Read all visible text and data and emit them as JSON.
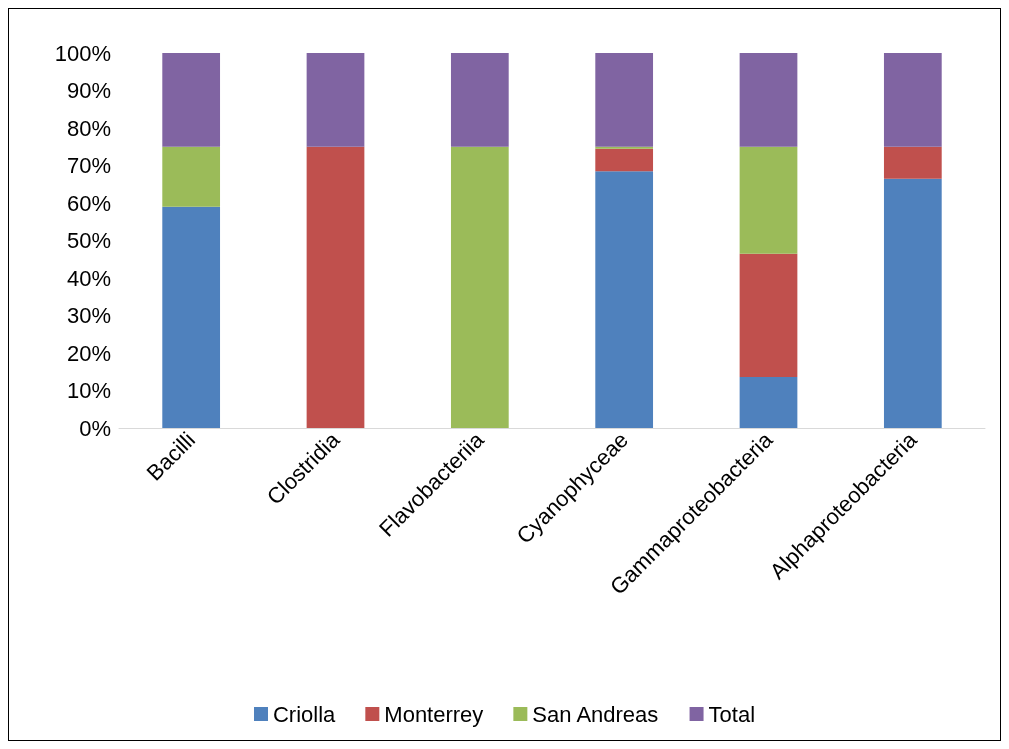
{
  "chart_data": {
    "type": "bar",
    "stacked": true,
    "categories": [
      "Bacilli",
      "Clostridia",
      "Flavobacteriia",
      "Cyanophyceae",
      "Gammaproteobacteria",
      "Alphaproteobacteria"
    ],
    "series": [
      {
        "name": "Criolla",
        "color": "#4f81bd",
        "values": [
          59,
          0,
          0,
          68.5,
          13.6,
          66.5
        ]
      },
      {
        "name": "Monterrey",
        "color": "#c0504d",
        "values": [
          0,
          75,
          0,
          6,
          32.9,
          8.5
        ]
      },
      {
        "name": "San Andreas",
        "color": "#9bbb59",
        "values": [
          16,
          0,
          75,
          0.5,
          28.5,
          0
        ]
      },
      {
        "name": "Total",
        "color": "#8064a2",
        "values": [
          25,
          25,
          25,
          25,
          25,
          25
        ]
      }
    ],
    "ylim": [
      0,
      100
    ],
    "yticks": [
      {
        "value": 0,
        "label": "0%"
      },
      {
        "value": 10,
        "label": "10%"
      },
      {
        "value": 20,
        "label": "20%"
      },
      {
        "value": 30,
        "label": "30%"
      },
      {
        "value": 40,
        "label": "40%"
      },
      {
        "value": 50,
        "label": "50%"
      },
      {
        "value": 60,
        "label": "60%"
      },
      {
        "value": 70,
        "label": "70%"
      },
      {
        "value": 80,
        "label": "80%"
      },
      {
        "value": 90,
        "label": "90%"
      },
      {
        "value": 100,
        "label": "100%"
      }
    ],
    "grid": false,
    "legend": "bottom"
  }
}
